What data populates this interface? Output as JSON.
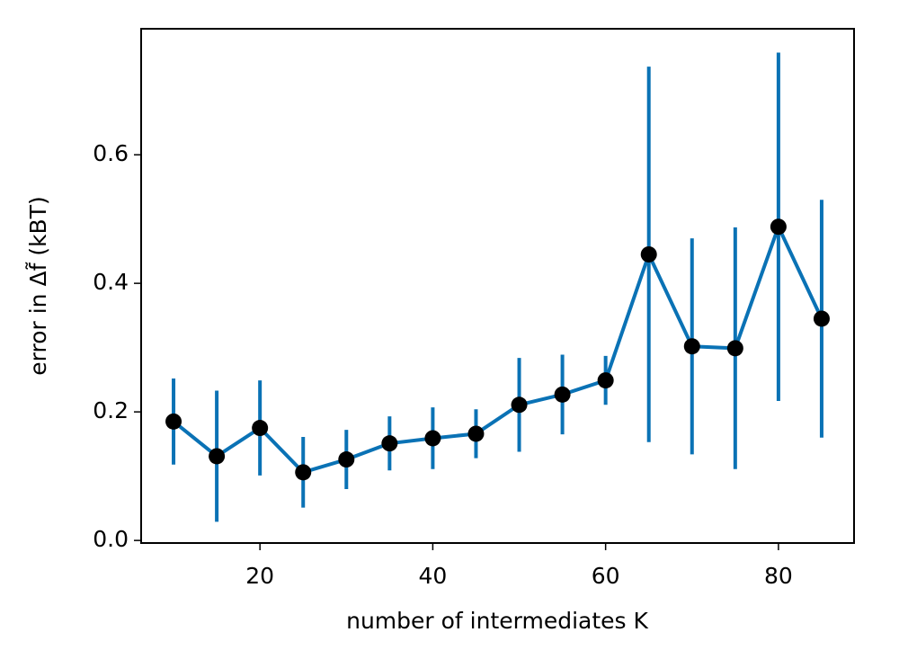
{
  "chart_data": {
    "type": "line",
    "x_label": "number of intermediates K",
    "y_label": "error in Δf̃ (kBT)",
    "x": [
      10,
      15,
      20,
      25,
      30,
      35,
      40,
      45,
      50,
      55,
      60,
      65,
      70,
      75,
      80,
      85
    ],
    "values": [
      0.185,
      0.131,
      0.175,
      0.106,
      0.126,
      0.151,
      0.159,
      0.166,
      0.211,
      0.227,
      0.249,
      0.445,
      0.302,
      0.299,
      0.488,
      0.345
    ],
    "errors": [
      0.067,
      0.102,
      0.074,
      0.055,
      0.046,
      0.042,
      0.048,
      0.038,
      0.073,
      0.062,
      0.038,
      0.292,
      0.168,
      0.188,
      0.271,
      0.185
    ],
    "color": "#0a72b5",
    "marker_color": "#000000",
    "xlim": [
      6.25,
      88.75
    ],
    "ylim": [
      -0.004,
      0.796
    ],
    "xticks": [
      20,
      40,
      60,
      80
    ],
    "yticks": [
      {
        "value": 0,
        "label": "0.0"
      },
      0.2,
      0.4,
      0.6
    ]
  }
}
